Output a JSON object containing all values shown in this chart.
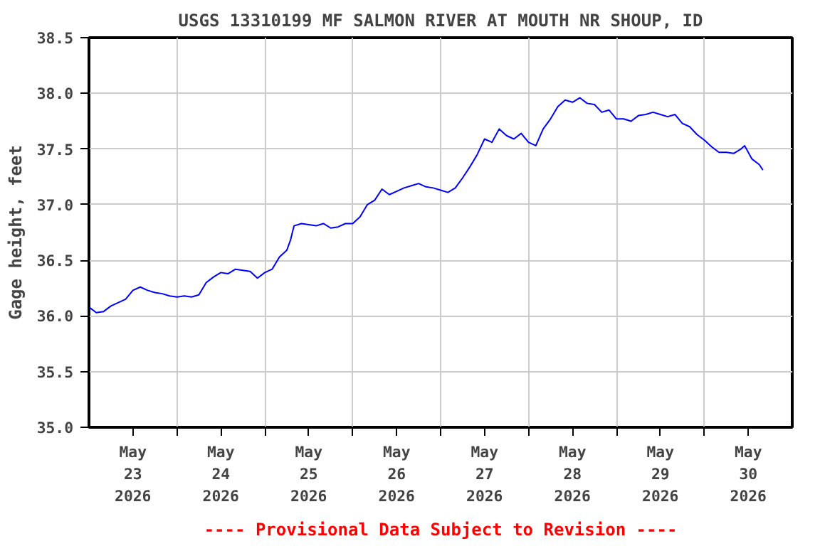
{
  "chart_data": {
    "type": "line",
    "title": "USGS 13310199 MF SALMON RIVER AT MOUTH NR SHOUP, ID",
    "ylabel": "Gage height, feet",
    "annotations": [
      "---- Provisional Data Subject to Revision ----"
    ],
    "series": [
      {
        "color": "#0000ff",
        "x": [
          "2026-05-23T00:00",
          "2026-05-23T02:00",
          "2026-05-23T04:00",
          "2026-05-23T06:00",
          "2026-05-23T08:00",
          "2026-05-23T10:00",
          "2026-05-23T12:00",
          "2026-05-23T14:00",
          "2026-05-23T16:00",
          "2026-05-23T18:00",
          "2026-05-23T20:00",
          "2026-05-23T22:00",
          "2026-05-24T00:00",
          "2026-05-24T02:00",
          "2026-05-24T04:00",
          "2026-05-24T06:00",
          "2026-05-24T08:00",
          "2026-05-24T10:00",
          "2026-05-24T12:00",
          "2026-05-24T14:00",
          "2026-05-24T16:00",
          "2026-05-24T18:00",
          "2026-05-24T20:00",
          "2026-05-24T22:00",
          "2026-05-25T00:00",
          "2026-05-25T02:00",
          "2026-05-25T04:00",
          "2026-05-25T06:00",
          "2026-05-25T07:00",
          "2026-05-25T08:00",
          "2026-05-25T10:00",
          "2026-05-25T12:00",
          "2026-05-25T14:00",
          "2026-05-25T16:00",
          "2026-05-25T18:00",
          "2026-05-25T20:00",
          "2026-05-25T22:00",
          "2026-05-26T00:00",
          "2026-05-26T02:00",
          "2026-05-26T04:00",
          "2026-05-26T06:00",
          "2026-05-26T08:00",
          "2026-05-26T10:00",
          "2026-05-26T12:00",
          "2026-05-26T14:00",
          "2026-05-26T16:00",
          "2026-05-26T18:00",
          "2026-05-26T20:00",
          "2026-05-26T22:00",
          "2026-05-27T00:00",
          "2026-05-27T02:00",
          "2026-05-27T04:00",
          "2026-05-27T06:00",
          "2026-05-27T08:00",
          "2026-05-27T10:00",
          "2026-05-27T12:00",
          "2026-05-27T14:00",
          "2026-05-27T16:00",
          "2026-05-27T18:00",
          "2026-05-27T20:00",
          "2026-05-27T22:00",
          "2026-05-28T00:00",
          "2026-05-28T02:00",
          "2026-05-28T04:00",
          "2026-05-28T06:00",
          "2026-05-28T08:00",
          "2026-05-28T10:00",
          "2026-05-28T12:00",
          "2026-05-28T14:00",
          "2026-05-28T16:00",
          "2026-05-28T18:00",
          "2026-05-28T20:00",
          "2026-05-28T22:00",
          "2026-05-29T00:00",
          "2026-05-29T02:00",
          "2026-05-29T04:00",
          "2026-05-29T06:00",
          "2026-05-29T08:00",
          "2026-05-29T10:00",
          "2026-05-29T12:00",
          "2026-05-29T14:00",
          "2026-05-29T16:00",
          "2026-05-29T18:00",
          "2026-05-29T20:00",
          "2026-05-29T22:00",
          "2026-05-30T00:00",
          "2026-05-30T02:00",
          "2026-05-30T04:00",
          "2026-05-30T06:00",
          "2026-05-30T08:00",
          "2026-05-30T10:00",
          "2026-05-30T11:00",
          "2026-05-30T13:00",
          "2026-05-30T15:00",
          "2026-05-30T16:00"
        ],
        "values": [
          36.08,
          36.03,
          36.04,
          36.09,
          36.12,
          36.15,
          36.23,
          36.26,
          36.23,
          36.21,
          36.2,
          36.18,
          36.17,
          36.18,
          36.17,
          36.19,
          36.3,
          36.35,
          36.39,
          36.38,
          36.42,
          36.41,
          36.4,
          36.34,
          36.39,
          36.42,
          36.53,
          36.59,
          36.68,
          36.81,
          36.83,
          36.82,
          36.81,
          36.83,
          36.79,
          36.8,
          36.83,
          36.83,
          36.89,
          37.0,
          37.04,
          37.14,
          37.09,
          37.12,
          37.15,
          37.17,
          37.19,
          37.16,
          37.15,
          37.13,
          37.11,
          37.15,
          37.24,
          37.34,
          37.45,
          37.59,
          37.56,
          37.68,
          37.62,
          37.59,
          37.64,
          37.56,
          37.53,
          37.68,
          37.77,
          37.88,
          37.94,
          37.92,
          37.96,
          37.91,
          37.9,
          37.83,
          37.85,
          37.77,
          37.77,
          37.75,
          37.8,
          37.81,
          37.83,
          37.81,
          37.79,
          37.81,
          37.73,
          37.7,
          37.63,
          37.58,
          37.52,
          37.47,
          37.47,
          37.46,
          37.5,
          37.53,
          37.41,
          37.36,
          37.31
        ]
      }
    ],
    "xlim": [
      "2026-05-23T00:00",
      "2026-05-31T00:00"
    ],
    "xticks": [
      {
        "value": "2026-05-23T12:00",
        "label": "May\n23\n2026"
      },
      {
        "value": "2026-05-24T12:00",
        "label": "May\n24\n2026"
      },
      {
        "value": "2026-05-25T12:00",
        "label": "May\n25\n2026"
      },
      {
        "value": "2026-05-26T12:00",
        "label": "May\n26\n2026"
      },
      {
        "value": "2026-05-27T12:00",
        "label": "May\n27\n2026"
      },
      {
        "value": "2026-05-28T12:00",
        "label": "May\n28\n2026"
      },
      {
        "value": "2026-05-29T12:00",
        "label": "May\n29\n2026"
      },
      {
        "value": "2026-05-30T12:00",
        "label": "May\n30\n2026"
      },
      {
        "value": "2026-05-24T00:00",
        "label": null
      },
      {
        "value": "2026-05-25T00:00",
        "label": null
      },
      {
        "value": "2026-05-26T00:00",
        "label": null
      },
      {
        "value": "2026-05-27T00:00",
        "label": null
      },
      {
        "value": "2026-05-28T00:00",
        "label": null
      },
      {
        "value": "2026-05-29T00:00",
        "label": null
      },
      {
        "value": "2026-05-30T00:00",
        "label": null
      }
    ],
    "ylim": [
      35.0,
      38.5
    ],
    "yticks": [
      {
        "value": 35.0,
        "label": "35.0"
      },
      {
        "value": 35.5,
        "label": "35.5"
      },
      {
        "value": 36.0,
        "label": "36.0"
      },
      {
        "value": 36.5,
        "label": "36.5"
      },
      {
        "value": 37.0,
        "label": "37.0"
      },
      {
        "value": 37.5,
        "label": "37.5"
      },
      {
        "value": 38.0,
        "label": "38.0"
      },
      {
        "value": 38.5,
        "label": "38.5"
      }
    ],
    "grid": true
  }
}
